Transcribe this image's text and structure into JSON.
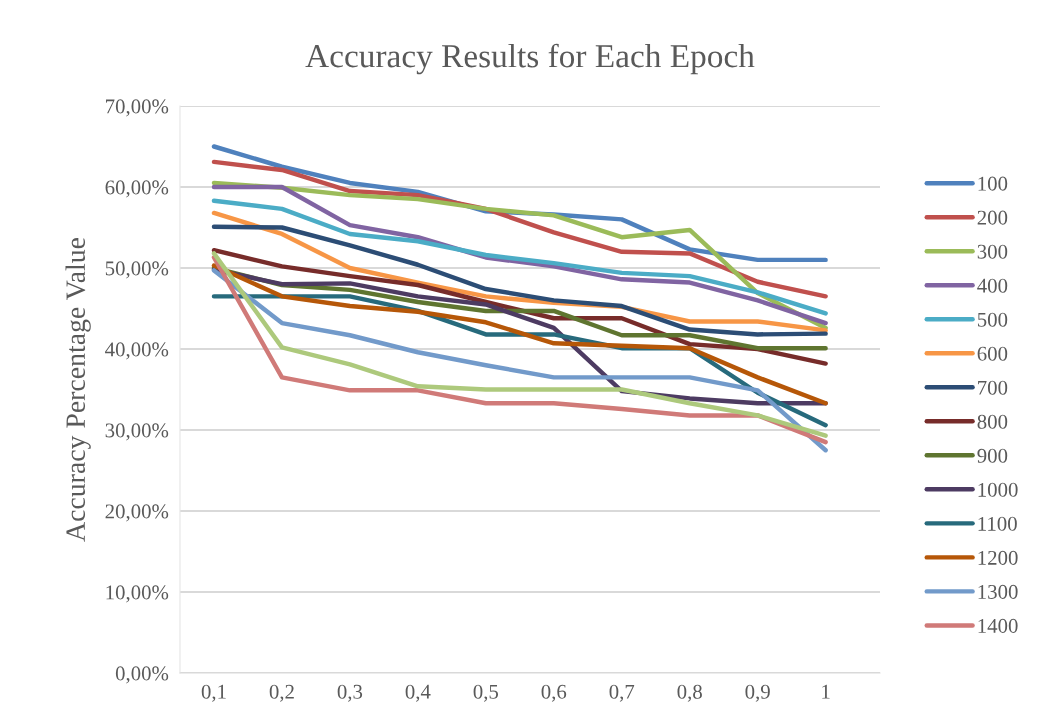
{
  "chart_data": {
    "type": "line",
    "title": "Accuracy Results for Each Epoch",
    "ylabel": "Accuracy Percentage Value",
    "categories": [
      "0,1",
      "0,2",
      "0,3",
      "0,4",
      "0,5",
      "0,6",
      "0,7",
      "0,8",
      "0,9",
      "1"
    ],
    "ylim": [
      0,
      70
    ],
    "yticks": [
      {
        "value": 0,
        "label": "0,00%"
      },
      {
        "value": 10,
        "label": "10,00%"
      },
      {
        "value": 20,
        "label": "20,00%"
      },
      {
        "value": 30,
        "label": "30,00%"
      },
      {
        "value": 40,
        "label": "40,00%"
      },
      {
        "value": 50,
        "label": "50,00%"
      },
      {
        "value": 60,
        "label": "60,00%"
      },
      {
        "value": 70,
        "label": "70,00%"
      }
    ],
    "grid": "y",
    "legend": "right",
    "marker": "none",
    "line_style": "solid",
    "series": [
      {
        "name": "100",
        "color": "#4f81bd",
        "values": [
          65.0,
          62.5,
          60.5,
          59.4,
          57.0,
          56.6,
          56.0,
          52.3,
          51.0,
          51.0
        ]
      },
      {
        "name": "200",
        "color": "#c0504d",
        "values": [
          63.1,
          62.1,
          59.5,
          59.0,
          57.3,
          54.4,
          52.0,
          51.8,
          48.3,
          46.5
        ]
      },
      {
        "name": "300",
        "color": "#9bbb59",
        "values": [
          60.5,
          59.9,
          59.0,
          58.5,
          57.3,
          56.5,
          53.8,
          54.7,
          46.9,
          42.6
        ]
      },
      {
        "name": "400",
        "color": "#8064a2",
        "values": [
          60.0,
          60.0,
          55.3,
          53.8,
          51.3,
          50.2,
          48.6,
          48.2,
          46.0,
          43.2
        ]
      },
      {
        "name": "500",
        "color": "#4bacc6",
        "values": [
          58.3,
          57.3,
          54.2,
          53.3,
          51.6,
          50.6,
          49.4,
          49.0,
          47.0,
          44.4
        ]
      },
      {
        "name": "600",
        "color": "#f79646",
        "values": [
          56.8,
          54.2,
          50.0,
          48.2,
          46.5,
          45.7,
          45.2,
          43.4,
          43.4,
          42.3
        ]
      },
      {
        "name": "700",
        "color": "#2c4d75",
        "values": [
          55.1,
          55.0,
          52.8,
          50.4,
          47.4,
          46.0,
          45.3,
          42.4,
          41.8,
          41.9
        ]
      },
      {
        "name": "800",
        "color": "#772c2a",
        "values": [
          52.2,
          50.2,
          49.0,
          47.9,
          45.8,
          43.8,
          43.8,
          40.6,
          40.0,
          38.2
        ]
      },
      {
        "name": "900",
        "color": "#5f7530",
        "values": [
          50.0,
          47.9,
          47.3,
          45.8,
          44.7,
          44.7,
          41.7,
          41.7,
          40.1,
          40.1
        ]
      },
      {
        "name": "1000",
        "color": "#4d3b62",
        "values": [
          49.8,
          48.0,
          48.1,
          46.5,
          45.5,
          42.6,
          34.8,
          33.9,
          33.3,
          33.3
        ]
      },
      {
        "name": "1100",
        "color": "#276a7c",
        "values": [
          46.5,
          46.5,
          46.5,
          44.7,
          41.8,
          41.8,
          40.1,
          40.1,
          34.6,
          30.6
        ]
      },
      {
        "name": "1200",
        "color": "#b65708",
        "values": [
          50.3,
          46.5,
          45.3,
          44.6,
          43.3,
          40.7,
          40.4,
          40.1,
          36.5,
          33.3
        ]
      },
      {
        "name": "1300",
        "color": "#729aca",
        "values": [
          49.7,
          43.2,
          41.7,
          39.6,
          38.0,
          36.5,
          36.5,
          36.5,
          34.9,
          27.5
        ]
      },
      {
        "name": "1400",
        "color": "#d07a78",
        "values": [
          51.3,
          36.5,
          34.9,
          34.9,
          33.3,
          33.3,
          32.6,
          31.8,
          31.8,
          28.5
        ]
      },
      {
        "color": "#adc97c",
        "values": [
          51.8,
          40.2,
          38.1,
          35.4,
          35.0,
          35.0,
          35.0,
          33.3,
          31.8,
          29.3
        ]
      }
    ]
  }
}
